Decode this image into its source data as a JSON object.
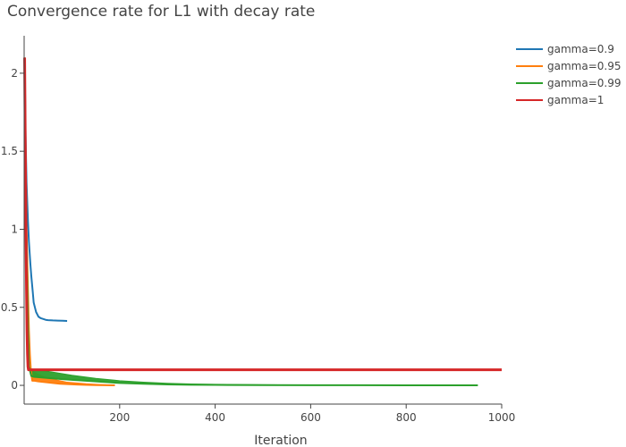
{
  "chart_data": {
    "type": "line",
    "title": "Convergence rate for L1 with decay rate",
    "xlabel": "Iteration",
    "ylabel": "",
    "xlim": [
      0,
      1000
    ],
    "ylim": [
      -0.12,
      2.24
    ],
    "x_ticks": [
      200,
      400,
      600,
      800,
      1000
    ],
    "y_ticks": [
      0,
      0.5,
      1,
      1.5,
      2
    ],
    "x_tick_labels": [
      "200",
      "400",
      "600",
      "800",
      "1000"
    ],
    "y_tick_labels": [
      "0",
      "0.5",
      "1",
      "1.5",
      "2"
    ],
    "grid": false,
    "legend_position": "top-right",
    "series": [
      {
        "name": "gamma=0.9",
        "color": "#1f77b4",
        "x": [
          1,
          3,
          5,
          8,
          10,
          13,
          15,
          18,
          20,
          25,
          30,
          35,
          40,
          45,
          50,
          60,
          70,
          80,
          90
        ],
        "y": [
          2.1,
          1.6,
          1.3,
          1.05,
          0.92,
          0.78,
          0.7,
          0.6,
          0.53,
          0.47,
          0.44,
          0.43,
          0.425,
          0.42,
          0.418,
          0.416,
          0.415,
          0.414,
          0.413
        ]
      },
      {
        "name": "gamma=0.95",
        "color": "#ff7f0e",
        "x": [
          1,
          3,
          5,
          8,
          10,
          12,
          14,
          17,
          20,
          30,
          45,
          60,
          75,
          90,
          110,
          130,
          150,
          170,
          190
        ],
        "y": [
          2.1,
          1.5,
          1.0,
          0.6,
          0.35,
          0.2,
          0.1,
          0.03,
          0.03,
          0.025,
          0.02,
          0.015,
          0.01,
          0.008,
          0.005,
          0.003,
          0.002,
          0.001,
          0.0
        ],
        "band_upper": [
          2.1,
          1.5,
          1.0,
          0.6,
          0.35,
          0.2,
          0.1,
          0.09,
          0.085,
          0.07,
          0.05,
          0.04,
          0.03,
          0.02,
          0.015,
          0.01,
          0.007,
          0.004,
          0.0
        ]
      },
      {
        "name": "gamma=0.99",
        "color": "#2ca02c",
        "x": [
          1,
          3,
          5,
          8,
          10,
          15,
          20,
          40,
          60,
          80,
          100,
          150,
          200,
          250,
          300,
          350,
          400,
          500,
          600,
          700,
          800,
          900,
          950
        ],
        "y": [
          2.1,
          1.4,
          0.9,
          0.4,
          0.12,
          0.06,
          0.055,
          0.05,
          0.045,
          0.04,
          0.035,
          0.025,
          0.015,
          0.01,
          0.006,
          0.004,
          0.003,
          0.002,
          0.001,
          0.001,
          0.0,
          0.0,
          0.0
        ],
        "band_upper": [
          2.1,
          1.4,
          0.9,
          0.4,
          0.12,
          0.1,
          0.1,
          0.095,
          0.085,
          0.075,
          0.065,
          0.045,
          0.03,
          0.02,
          0.013,
          0.009,
          0.007,
          0.004,
          0.002,
          0.001,
          0.0,
          0.0,
          0.0
        ]
      },
      {
        "name": "gamma=1",
        "color": "#d62728",
        "x": [
          1,
          2,
          3,
          4,
          5,
          6,
          7,
          8,
          9,
          10,
          20,
          200,
          400,
          600,
          800,
          1000
        ],
        "y": [
          2.1,
          1.7,
          1.3,
          0.9,
          0.6,
          0.35,
          0.2,
          0.12,
          0.1,
          0.1,
          0.1,
          0.1,
          0.1,
          0.1,
          0.1,
          0.1
        ]
      }
    ]
  }
}
